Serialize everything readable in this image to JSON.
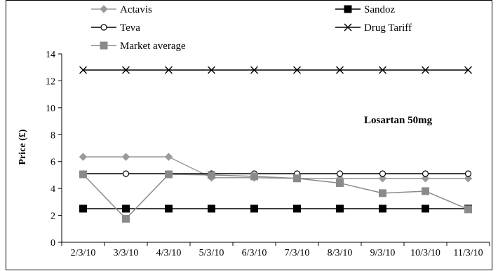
{
  "chart_data": {
    "type": "line",
    "categories": [
      "2/3/10",
      "3/3/10",
      "4/3/10",
      "5/3/10",
      "6/3/10",
      "7/3/10",
      "8/3/10",
      "9/3/10",
      "10/3/10",
      "11/3/10"
    ],
    "ylabel": "Price (£)",
    "ylim": [
      0,
      14
    ],
    "yticks": [
      0,
      2,
      4,
      6,
      8,
      10,
      12,
      14
    ],
    "grid": false,
    "legend_position": "top",
    "annotation": "Losartan 50mg",
    "series": [
      {
        "name": "Actavis",
        "marker": "diamond",
        "color": "#9a9a9a",
        "values": [
          6.35,
          6.35,
          6.35,
          4.8,
          4.8,
          4.75,
          4.75,
          4.75,
          4.75,
          4.75
        ]
      },
      {
        "name": "Sandoz",
        "marker": "square-filled",
        "color": "#000000",
        "values": [
          2.5,
          2.5,
          2.5,
          2.5,
          2.5,
          2.5,
          2.5,
          2.5,
          2.5,
          2.5
        ]
      },
      {
        "name": "Teva",
        "marker": "circle-open",
        "color": "#000000",
        "values": [
          5.1,
          5.1,
          5.1,
          5.1,
          5.1,
          5.1,
          5.1,
          5.1,
          5.1,
          5.1
        ]
      },
      {
        "name": "Drug Tariff",
        "marker": "x",
        "color": "#000000",
        "values": [
          12.8,
          12.8,
          12.8,
          12.8,
          12.8,
          12.8,
          12.8,
          12.8,
          12.8,
          12.8
        ]
      },
      {
        "name": "Market average",
        "marker": "square-filled",
        "color": "#8a8a8a",
        "values": [
          5.05,
          1.75,
          5.05,
          5.0,
          4.9,
          4.75,
          4.4,
          3.65,
          3.8,
          2.45
        ]
      }
    ]
  }
}
